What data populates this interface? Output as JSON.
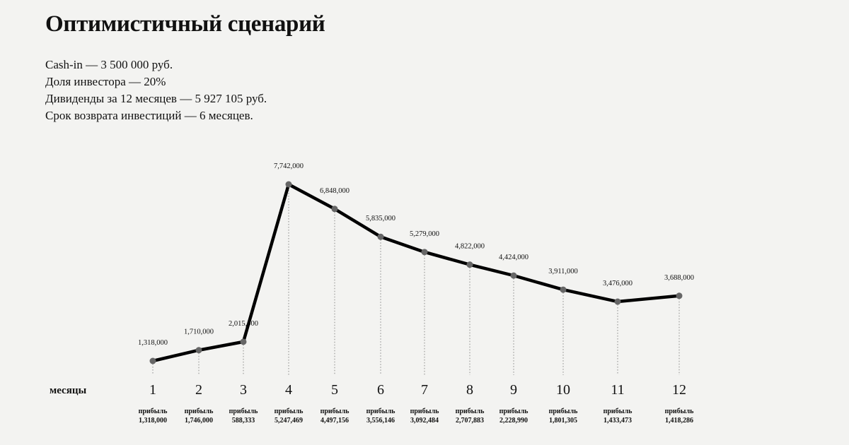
{
  "header": {
    "title": "Оптимистичный сценарий",
    "lines": [
      "Cash-in — 3 500 000 руб.",
      "Доля инвестора — 20%",
      "Дивиденды за 12 месяцев — 5 927 105 руб.",
      "Срок возврата инвестиций — 6 месяцев."
    ]
  },
  "colors": {
    "line": "#000000",
    "marker": "#666666",
    "dotted": "#888888",
    "background": "#f3f3f1"
  },
  "chart_data": {
    "type": "line",
    "title": "",
    "xlabel": "месяцы",
    "ylabel": "",
    "grid": false,
    "x": [
      "1",
      "2",
      "3",
      "4",
      "5",
      "6",
      "7",
      "8",
      "9",
      "10",
      "11",
      "12"
    ],
    "series": [
      {
        "values": [
          1318000,
          1710000,
          2015000,
          7742000,
          6848000,
          5835000,
          5279000,
          4822000,
          4424000,
          3911000,
          3476000,
          3688000
        ],
        "labels": [
          "1,318,000",
          "1,710,000",
          "2,015,000",
          "7,742,000",
          "6,848,000",
          "5,835,000",
          "5,279,000",
          "4,822,000",
          "4,424,000",
          "3,911,000",
          "3,476,000",
          "3,688,000"
        ]
      }
    ],
    "profit_label": "прибыль",
    "profit_values": [
      "1,318,000",
      "1,746,000",
      "588,333",
      "5,247,469",
      "4,497,156",
      "3,556,146",
      "3,092,484",
      "2,707,883",
      "2,228,990",
      "1,801,305",
      "1,433,473",
      "1,418,286"
    ]
  }
}
